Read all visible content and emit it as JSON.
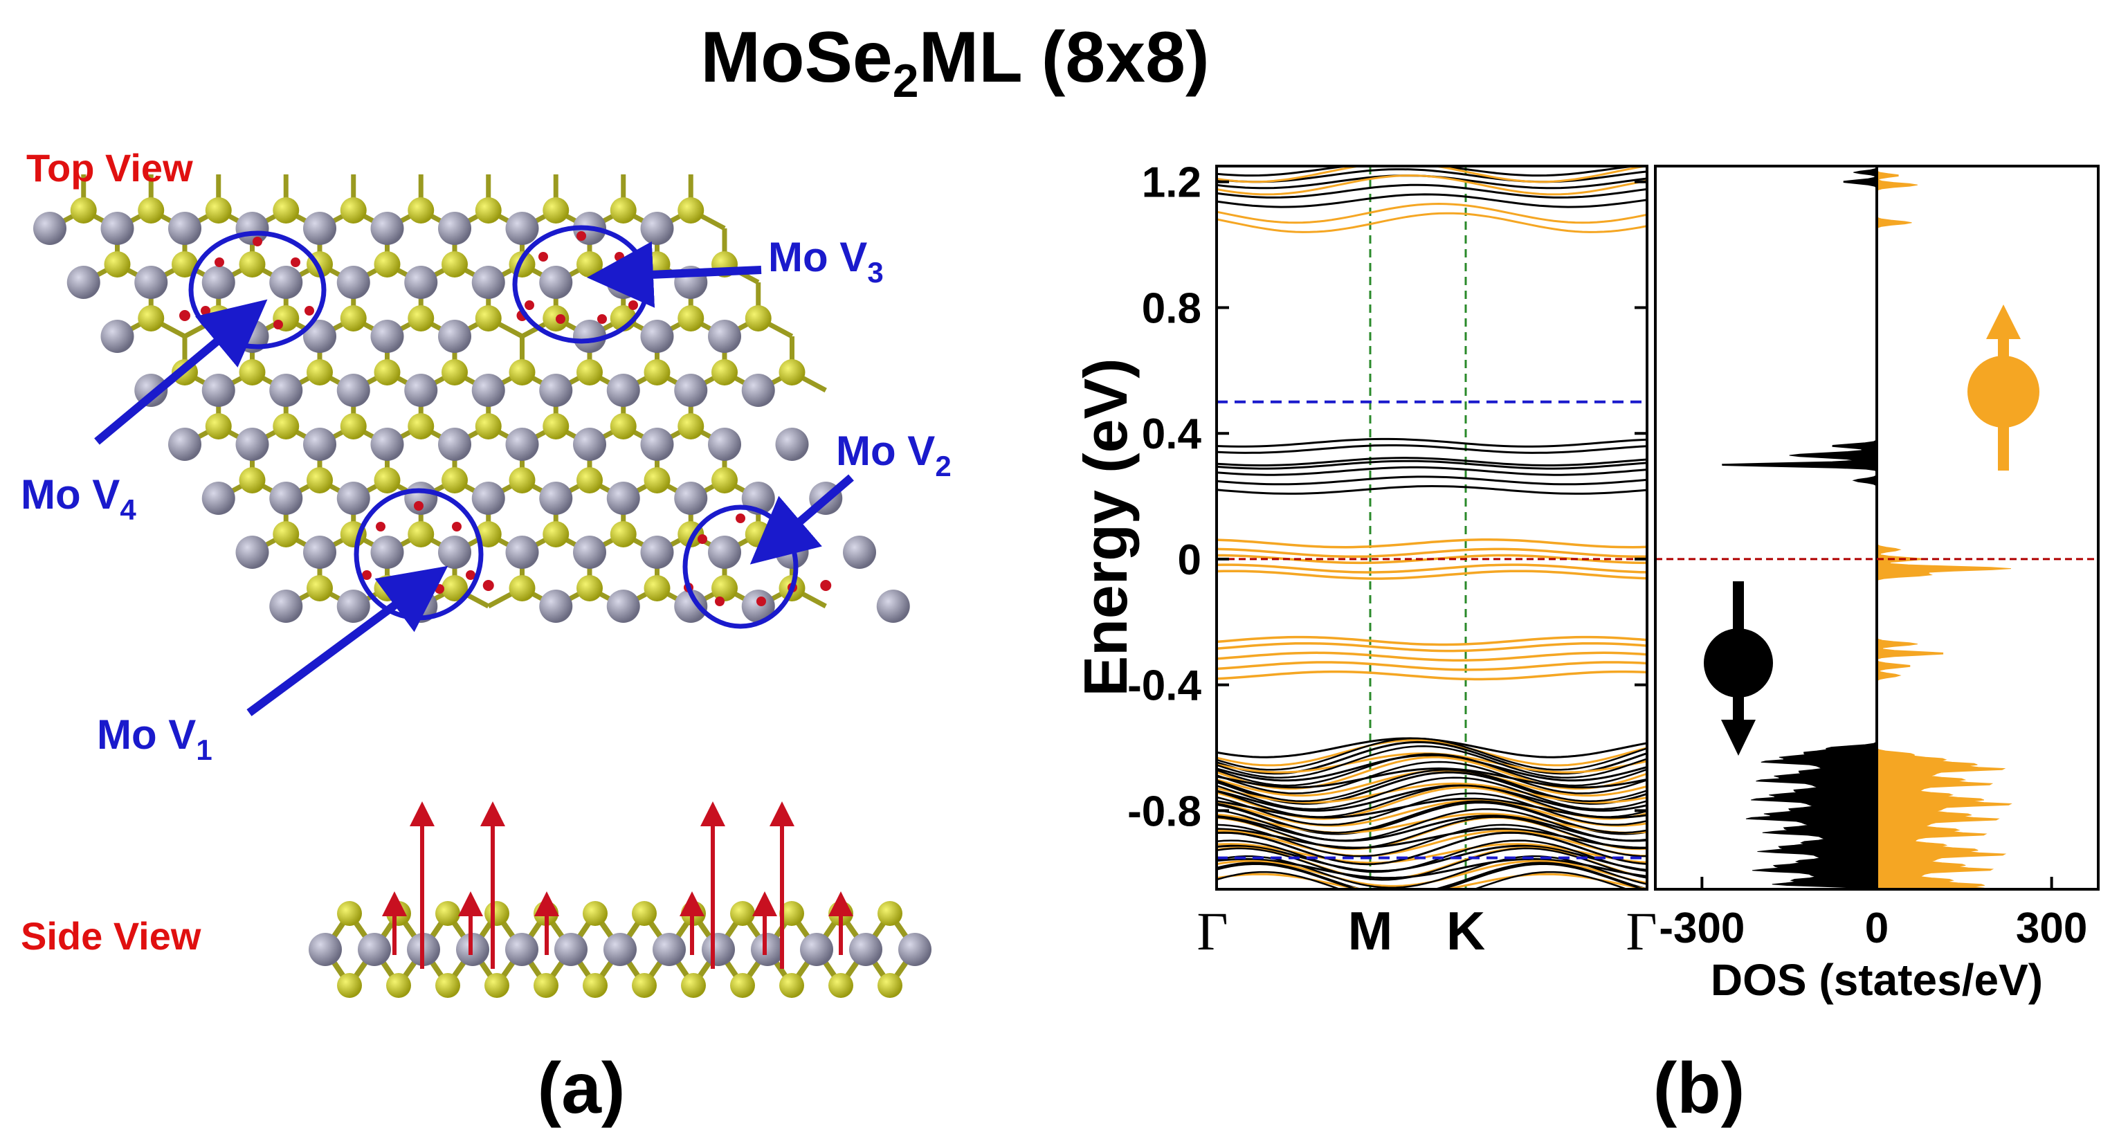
{
  "title": {
    "main": "MoSe",
    "sub": "2",
    "rest": "ML (8x8)"
  },
  "panel_a": {
    "top_view_label": "Top View",
    "side_view_label": "Side View",
    "vacancy_labels": [
      {
        "prefix": "Mo V",
        "sub": "1"
      },
      {
        "prefix": "Mo V",
        "sub": "2"
      },
      {
        "prefix": "Mo V",
        "sub": "3"
      },
      {
        "prefix": "Mo V",
        "sub": "4"
      }
    ],
    "caption": "(a)"
  },
  "panel_b": {
    "caption": "(b)",
    "band": {
      "ylabel": "Energy (eV)",
      "ylim": [
        -1.05,
        1.25
      ],
      "yticks": [
        "1.2",
        "0.8",
        "0.4",
        "0",
        "-0.4",
        "-0.8"
      ],
      "xticks": [
        "Γ",
        "M",
        "K",
        "Γ"
      ],
      "fermi_level": 0,
      "blue_reference_levels": [
        0.5,
        -0.95
      ],
      "spin_up_color": "#f5a623",
      "spin_down_color": "#000000",
      "fermi_color": "#b00000",
      "kpath_color": "#2a8a2a",
      "reference_color": "#1a1acc"
    },
    "dos": {
      "xlabel": "DOS (states/eV)",
      "xlim": [
        -380,
        380
      ],
      "xticks": [
        "-300",
        "0",
        "300"
      ],
      "spin_up_legend": "up arrow",
      "spin_down_legend": "down arrow"
    }
  },
  "colors": {
    "mo": "#8a8aa0",
    "se": "#c8c820",
    "moment": "#c81020",
    "circle": "#1a1acc",
    "label_red": "#e01010",
    "label_blue": "#1a1acc"
  }
}
